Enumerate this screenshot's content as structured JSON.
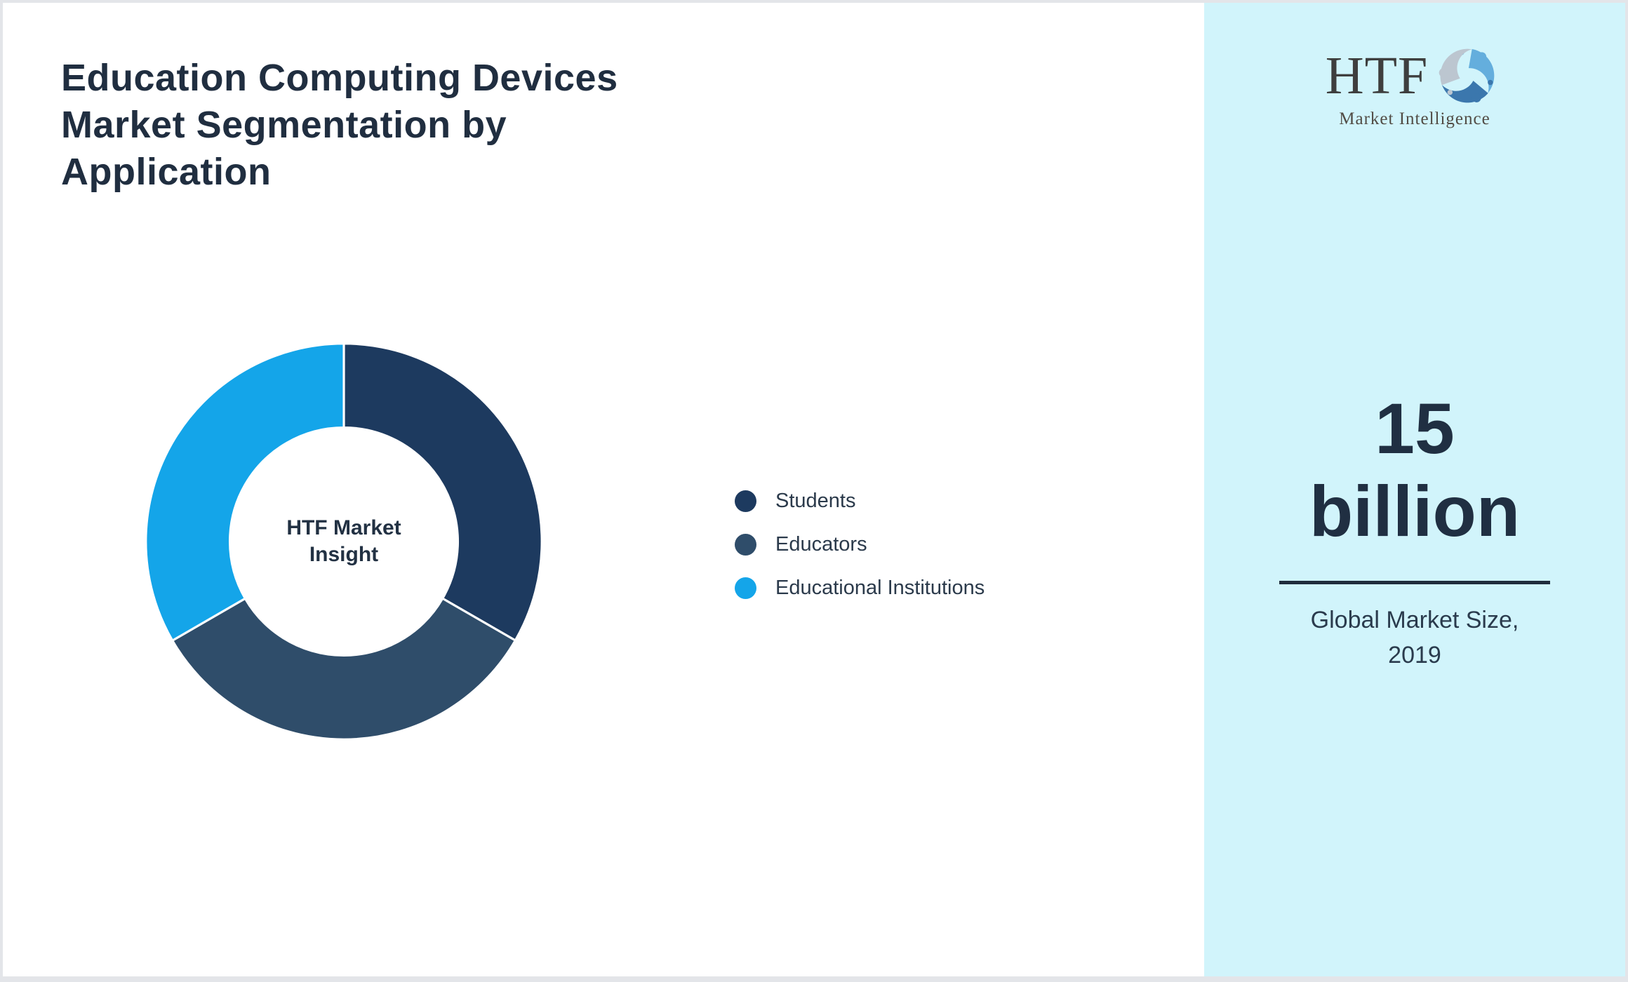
{
  "title": {
    "full": "Education Computing Devices Market Segmentation by Application",
    "lines": [
      "Education Computing Devices",
      "Market Segmentation by",
      "Application"
    ]
  },
  "chart_data": {
    "type": "pie",
    "variant": "donut",
    "title": "Education Computing Devices Market Segmentation by Application",
    "categories": [
      "Students",
      "Educators",
      "Educational Institutions"
    ],
    "values": [
      33.33,
      33.33,
      33.34
    ],
    "unit": "% (estimated from equal 120° arcs; no numeric labels shown)",
    "colors": [
      "#1d3a5f",
      "#2f4d6a",
      "#14a5e9"
    ],
    "center_label": "HTF Market Insight",
    "center_lines": [
      "HTF Market",
      "Insight"
    ],
    "legend_position": "right",
    "start_angle_deg": 0,
    "direction": "clockwise"
  },
  "legend": {
    "items": [
      {
        "label": "Students",
        "color": "#1d3a5f"
      },
      {
        "label": "Educators",
        "color": "#2f4d6a"
      },
      {
        "label": "Educational Institutions",
        "color": "#14a5e9"
      }
    ]
  },
  "sidebar": {
    "background": "#d1f4fb",
    "logo_text": "HTF",
    "logo_subtext": "Market Intelligence",
    "stat_value": "15 billion",
    "stat_lines": [
      "15",
      "billion"
    ],
    "stat_caption": "Global Market Size, 2019",
    "stat_caption_lines": [
      "Global Market Size,",
      "2019"
    ]
  },
  "theme": {
    "title_color": "#202e40",
    "text_color": "#2b3a4b",
    "divider_color": "#1f2c3c",
    "page_background": "#ffffff",
    "border_color": "#e3e5e9"
  }
}
